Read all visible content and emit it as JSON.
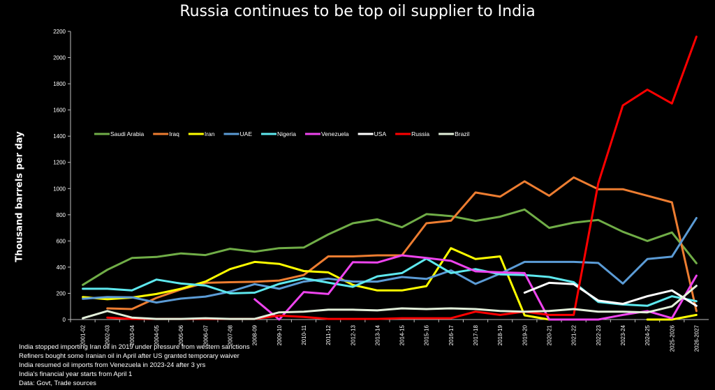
{
  "chart_data": {
    "type": "line",
    "title": "Russia continues to be top oil supplier to India",
    "ylabel": "Thousand barrels per day",
    "xlabel": "",
    "ylim": [
      0,
      2200
    ],
    "yticks": [
      0,
      200,
      400,
      600,
      800,
      1000,
      1200,
      1400,
      1600,
      1800,
      2000,
      2200
    ],
    "grid": false,
    "legend_position": "upper-left inside plot",
    "categories": [
      "2001-02",
      "2002-03",
      "2003-04",
      "2004-05",
      "2005-06",
      "2006-07",
      "2007-08",
      "2008-09",
      "2009-10",
      "2010-11",
      "2011-12",
      "2012-13",
      "2013-14",
      "2014-15",
      "2015-16",
      "2016-17",
      "2017-18",
      "2018-19",
      "2019-20",
      "2020-21",
      "2021-22",
      "2022-23",
      "2023-24",
      "2024-25",
      "2025-2026",
      "2026-2027"
    ],
    "series": [
      {
        "name": "Saudi Arabia",
        "color": "#70ad47",
        "values": [
          265,
          380,
          470,
          478,
          505,
          492,
          540,
          518,
          545,
          550,
          650,
          735,
          765,
          705,
          805,
          790,
          753,
          785,
          840,
          700,
          740,
          760,
          670,
          600,
          665,
          430
        ]
      },
      {
        "name": "Iraq",
        "color": "#ed7d31",
        "values": [
          null,
          85,
          80,
          165,
          230,
          280,
          285,
          288,
          298,
          340,
          482,
          482,
          490,
          490,
          735,
          755,
          970,
          938,
          1055,
          945,
          1085,
          995,
          995,
          945,
          895,
          65
        ]
      },
      {
        "name": "Iran",
        "color": "#ffff00",
        "values": [
          172,
          155,
          168,
          195,
          235,
          290,
          385,
          440,
          425,
          370,
          360,
          265,
          222,
          222,
          255,
          545,
          462,
          482,
          32,
          0,
          null,
          null,
          null,
          0,
          0,
          35
        ]
      },
      {
        "name": "UAE",
        "color": "#5b9bd5",
        "values": [
          158,
          172,
          170,
          130,
          160,
          175,
          213,
          270,
          235,
          290,
          312,
          290,
          290,
          325,
          310,
          375,
          272,
          350,
          440,
          440,
          440,
          432,
          275,
          462,
          480,
          775
        ]
      },
      {
        "name": "Nigeria",
        "color": "#5ee8ee",
        "values": [
          235,
          235,
          222,
          305,
          275,
          260,
          200,
          205,
          272,
          315,
          282,
          250,
          330,
          355,
          465,
          355,
          385,
          345,
          340,
          325,
          285,
          135,
          115,
          105,
          178,
          140
        ]
      },
      {
        "name": "Venezuela",
        "color": "#ee44ee",
        "values": [
          null,
          null,
          null,
          null,
          null,
          null,
          null,
          155,
          0,
          210,
          195,
          438,
          435,
          490,
          470,
          448,
          368,
          360,
          355,
          0,
          0,
          0,
          35,
          65,
          10,
          335
        ]
      },
      {
        "name": "USA",
        "color": "#ffffff",
        "values": [
          null,
          null,
          null,
          null,
          null,
          null,
          null,
          null,
          null,
          null,
          null,
          null,
          null,
          null,
          null,
          null,
          null,
          null,
          205,
          280,
          270,
          145,
          120,
          178,
          222,
          105
        ]
      },
      {
        "name": "Russia",
        "color": "#ff0000",
        "values": [
          null,
          15,
          5,
          5,
          5,
          5,
          5,
          5,
          30,
          20,
          5,
          5,
          5,
          10,
          10,
          10,
          60,
          35,
          60,
          35,
          35,
          1040,
          1635,
          1755,
          1650,
          2160
        ]
      },
      {
        "name": "Brazil",
        "color": "#e2efda",
        "values": [
          10,
          65,
          15,
          5,
          5,
          10,
          5,
          5,
          55,
          60,
          75,
          75,
          70,
          85,
          80,
          85,
          80,
          65,
          60,
          65,
          80,
          60,
          60,
          55,
          100,
          258
        ]
      }
    ]
  },
  "notes": [
    "India stopped importing Iran oil in 2019 under pressure from western sanctions",
    "Refiners bought some Iranian oil in April after US granted temporary waiver",
    "India resumed oil imports from Venezuela in 2023-24 after 3 yrs",
    "India's financial year starts from April 1",
    "Data: Govt, Trade sources"
  ]
}
